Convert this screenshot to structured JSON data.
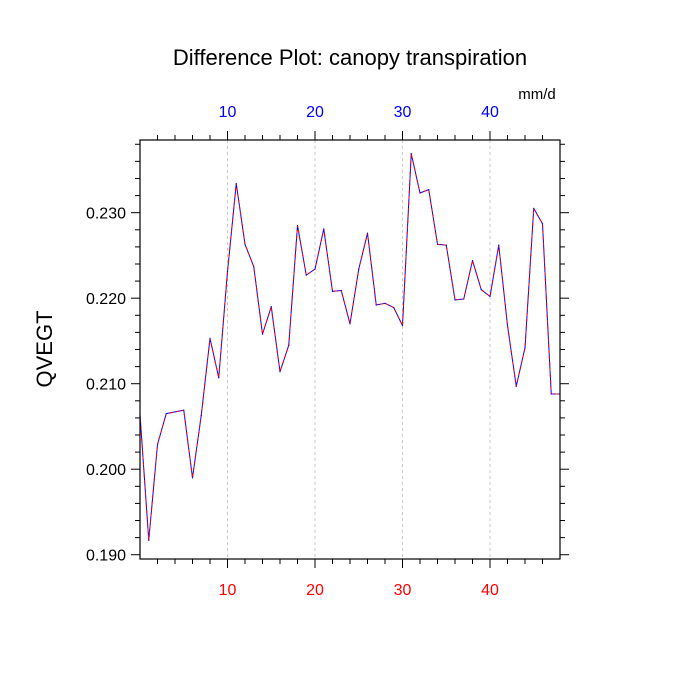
{
  "chart_data": {
    "type": "line",
    "title": "Difference Plot: canopy transpiration",
    "units": "mm/d",
    "ylabel": "QVEGT",
    "xlim": [
      0,
      48
    ],
    "ylim": [
      0.1895,
      0.2385
    ],
    "yticks": [
      0.19,
      0.2,
      0.21,
      0.22,
      0.23
    ],
    "ytick_labels": [
      "0.190",
      "0.200",
      "0.210",
      "0.220",
      "0.230"
    ],
    "xticks": [
      10,
      20,
      30,
      40
    ],
    "xtick_labels": [
      "10",
      "20",
      "30",
      "40"
    ],
    "grid": "vertical dashed at x ticks",
    "series": [
      {
        "color_primary": "#0000ff",
        "color_overlay": "#ff0000",
        "x": [
          0,
          1,
          2,
          3,
          4,
          5,
          6,
          7,
          8,
          9,
          10,
          11,
          12,
          13,
          14,
          15,
          16,
          17,
          18,
          19,
          20,
          21,
          22,
          23,
          24,
          25,
          26,
          27,
          28,
          29,
          30,
          31,
          32,
          33,
          34,
          35,
          36,
          37,
          38,
          39,
          40,
          41,
          42,
          43,
          44,
          45,
          46,
          47,
          48
        ],
        "values": [
          0.2064,
          0.1917,
          0.2029,
          0.2065,
          0.2067,
          0.2069,
          0.199,
          0.2063,
          0.2153,
          0.2107,
          0.2231,
          0.2334,
          0.2263,
          0.2237,
          0.2158,
          0.219,
          0.2114,
          0.2145,
          0.2285,
          0.2227,
          0.2234,
          0.2281,
          0.2208,
          0.2209,
          0.217,
          0.2234,
          0.2276,
          0.2192,
          0.2194,
          0.2189,
          0.2168,
          0.2369,
          0.2323,
          0.2327,
          0.2263,
          0.2262,
          0.2198,
          0.2199,
          0.2244,
          0.221,
          0.2202,
          0.2262,
          0.2168,
          0.2097,
          0.2142,
          0.2305,
          0.2287,
          0.2088,
          0.2088
        ]
      }
    ]
  }
}
